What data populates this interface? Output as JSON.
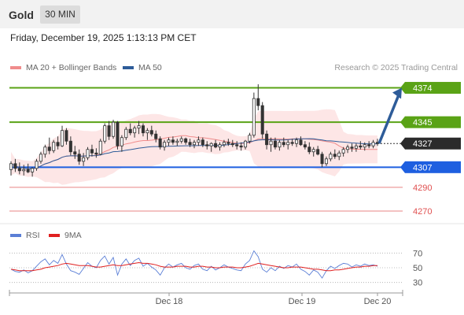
{
  "header": {
    "title": "Gold",
    "timeframe": "30 MIN"
  },
  "timestamp": "Friday, December 19, 2025 1:13:13 PM CET",
  "legend": {
    "price": [
      {
        "label": "MA 20 + Bollinger Bands",
        "color": "#f08c8c"
      },
      {
        "label": "MA 50",
        "color": "#2e5c99"
      }
    ],
    "rsi": [
      {
        "label": "RSI",
        "color": "#5b7fd6"
      },
      {
        "label": "9MA",
        "color": "#e02020"
      }
    ]
  },
  "credit": "Research © 2025 Trading Central",
  "chart_data": {
    "type": "candlestick",
    "ylim": [
      4262,
      4385
    ],
    "last_price": "4327",
    "levels": [
      {
        "label": "4374",
        "value": 4374,
        "kind": "resistance",
        "color": "#5aa316"
      },
      {
        "label": "4345",
        "value": 4345,
        "kind": "resistance",
        "color": "#5aa316"
      },
      {
        "label": "4307",
        "value": 4307,
        "kind": "support",
        "color": "#1e5fe0"
      },
      {
        "label": "4290",
        "value": 4290,
        "kind": "support-minor",
        "color": "#e05050"
      },
      {
        "label": "4270",
        "value": 4270,
        "kind": "support-minor",
        "color": "#e05050"
      }
    ],
    "arrow": {
      "from": 4327,
      "to": 4374,
      "direction": "up"
    },
    "x_labels": [
      "Dec 18",
      "Dec 19",
      "Dec 20"
    ],
    "ohlc": [
      [
        4305,
        4312,
        4300,
        4310
      ],
      [
        4310,
        4314,
        4303,
        4306
      ],
      [
        4306,
        4311,
        4301,
        4304
      ],
      [
        4304,
        4309,
        4300,
        4305
      ],
      [
        4305,
        4310,
        4302,
        4303
      ],
      [
        4303,
        4307,
        4299,
        4306
      ],
      [
        4306,
        4314,
        4304,
        4312
      ],
      [
        4312,
        4320,
        4310,
        4318
      ],
      [
        4318,
        4326,
        4315,
        4324
      ],
      [
        4324,
        4332,
        4318,
        4321
      ],
      [
        4321,
        4330,
        4319,
        4328
      ],
      [
        4328,
        4333,
        4322,
        4325
      ],
      [
        4325,
        4342,
        4324,
        4338
      ],
      [
        4338,
        4340,
        4326,
        4329
      ],
      [
        4329,
        4333,
        4317,
        4320
      ],
      [
        4320,
        4325,
        4314,
        4318
      ],
      [
        4318,
        4322,
        4309,
        4312
      ],
      [
        4312,
        4319,
        4308,
        4315
      ],
      [
        4315,
        4324,
        4313,
        4322
      ],
      [
        4322,
        4326,
        4316,
        4319
      ],
      [
        4319,
        4323,
        4315,
        4318
      ],
      [
        4318,
        4331,
        4317,
        4329
      ],
      [
        4329,
        4344,
        4327,
        4342
      ],
      [
        4342,
        4346,
        4330,
        4333
      ],
      [
        4333,
        4347,
        4331,
        4345
      ],
      [
        4345,
        4346,
        4322,
        4325
      ],
      [
        4325,
        4334,
        4320,
        4332
      ],
      [
        4332,
        4341,
        4330,
        4339
      ],
      [
        4339,
        4344,
        4334,
        4336
      ],
      [
        4336,
        4342,
        4332,
        4340
      ],
      [
        4340,
        4346,
        4335,
        4342
      ],
      [
        4342,
        4344,
        4333,
        4336
      ],
      [
        4336,
        4340,
        4330,
        4338
      ],
      [
        4338,
        4342,
        4333,
        4335
      ],
      [
        4335,
        4338,
        4328,
        4331
      ],
      [
        4331,
        4333,
        4322,
        4324
      ],
      [
        4324,
        4330,
        4321,
        4328
      ],
      [
        4328,
        4332,
        4325,
        4330
      ],
      [
        4330,
        4333,
        4326,
        4328
      ],
      [
        4328,
        4331,
        4325,
        4329
      ],
      [
        4329,
        4333,
        4327,
        4331
      ],
      [
        4331,
        4332,
        4326,
        4328
      ],
      [
        4328,
        4331,
        4324,
        4326
      ],
      [
        4326,
        4330,
        4323,
        4328
      ],
      [
        4328,
        4333,
        4325,
        4330
      ],
      [
        4330,
        4332,
        4324,
        4326
      ],
      [
        4326,
        4329,
        4322,
        4325
      ],
      [
        4325,
        4328,
        4320,
        4327
      ],
      [
        4327,
        4330,
        4323,
        4324
      ],
      [
        4324,
        4328,
        4321,
        4326
      ],
      [
        4326,
        4330,
        4324,
        4328
      ],
      [
        4328,
        4331,
        4325,
        4327
      ],
      [
        4327,
        4330,
        4324,
        4326
      ],
      [
        4326,
        4329,
        4322,
        4325
      ],
      [
        4325,
        4328,
        4321,
        4324
      ],
      [
        4324,
        4330,
        4322,
        4329
      ],
      [
        4329,
        4336,
        4327,
        4334
      ],
      [
        4334,
        4370,
        4332,
        4365
      ],
      [
        4365,
        4377,
        4355,
        4359
      ],
      [
        4359,
        4362,
        4331,
        4335
      ],
      [
        4335,
        4338,
        4322,
        4326
      ],
      [
        4326,
        4332,
        4320,
        4329
      ],
      [
        4329,
        4332,
        4322,
        4324
      ],
      [
        4324,
        4330,
        4321,
        4328
      ],
      [
        4328,
        4332,
        4324,
        4326
      ],
      [
        4326,
        4330,
        4322,
        4328
      ],
      [
        4328,
        4331,
        4325,
        4327
      ],
      [
        4327,
        4332,
        4324,
        4330
      ],
      [
        4330,
        4333,
        4325,
        4326
      ],
      [
        4326,
        4329,
        4322,
        4324
      ],
      [
        4324,
        4328,
        4318,
        4320
      ],
      [
        4320,
        4324,
        4316,
        4322
      ],
      [
        4322,
        4325,
        4317,
        4318
      ],
      [
        4318,
        4320,
        4307,
        4310
      ],
      [
        4310,
        4316,
        4308,
        4314
      ],
      [
        4314,
        4320,
        4312,
        4318
      ],
      [
        4318,
        4322,
        4314,
        4316
      ],
      [
        4316,
        4321,
        4313,
        4319
      ],
      [
        4319,
        4324,
        4316,
        4322
      ],
      [
        4322,
        4326,
        4319,
        4324
      ],
      [
        4324,
        4327,
        4320,
        4323
      ],
      [
        4323,
        4327,
        4320,
        4325
      ],
      [
        4325,
        4329,
        4322,
        4324
      ],
      [
        4324,
        4328,
        4321,
        4326
      ],
      [
        4326,
        4329,
        4323,
        4325
      ],
      [
        4325,
        4330,
        4323,
        4328
      ],
      [
        4328,
        4331,
        4325,
        4327
      ]
    ],
    "rsi": {
      "ylim": [
        20,
        80
      ],
      "ticks": [
        70,
        50,
        30
      ],
      "values": [
        48,
        45,
        44,
        47,
        43,
        46,
        52,
        58,
        62,
        54,
        60,
        56,
        68,
        55,
        46,
        44,
        41,
        49,
        57,
        52,
        50,
        60,
        66,
        55,
        64,
        40,
        55,
        62,
        53,
        60,
        63,
        52,
        56,
        51,
        47,
        40,
        50,
        55,
        51,
        54,
        56,
        50,
        48,
        53,
        55,
        48,
        46,
        52,
        47,
        50,
        54,
        51,
        49,
        47,
        46,
        55,
        60,
        73,
        65,
        48,
        44,
        50,
        46,
        52,
        49,
        53,
        51,
        55,
        48,
        45,
        40,
        47,
        44,
        36,
        46,
        52,
        49,
        53,
        56,
        55,
        51,
        54,
        52,
        55,
        53,
        54,
        52
      ],
      "ma": [
        48,
        47,
        46,
        46,
        46,
        46,
        47,
        48,
        50,
        51,
        52,
        53,
        55,
        56,
        55,
        54,
        53,
        53,
        53,
        52,
        51,
        51,
        52,
        53,
        54,
        53,
        53,
        54,
        55,
        56,
        57,
        56,
        56,
        55,
        54,
        52,
        51,
        51,
        51,
        52,
        52,
        52,
        51,
        51,
        52,
        52,
        51,
        51,
        50,
        50,
        51,
        51,
        51,
        50,
        50,
        51,
        52,
        54,
        56,
        55,
        54,
        53,
        52,
        51,
        50,
        50,
        51,
        51,
        51,
        50,
        49,
        48,
        48,
        47,
        46,
        46,
        47,
        47,
        48,
        49,
        50,
        51,
        51,
        52,
        52,
        53,
        53
      ]
    }
  }
}
